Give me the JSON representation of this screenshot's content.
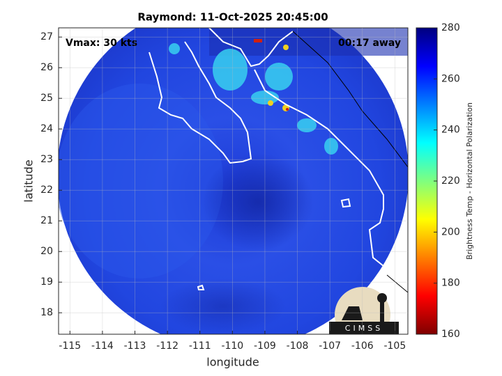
{
  "map": {
    "title": "Raymond: 11-Oct-2025 20:45:00",
    "annotations": {
      "left": "Vmax: 30 kts",
      "right": "00:17 away"
    },
    "xlabel": "longitude",
    "ylabel": "latitude",
    "xlim": [
      -115.35,
      -104.6
    ],
    "ylim": [
      17.3,
      27.3
    ],
    "xticks": [
      -115,
      -114,
      -113,
      -112,
      -111,
      -110,
      -109,
      -108,
      -107,
      -106,
      -105
    ],
    "yticks": [
      18,
      19,
      20,
      21,
      22,
      23,
      24,
      25,
      26,
      27
    ],
    "grid": true,
    "colorbar": {
      "label": "Brightness Temp - Horizontal Polarization",
      "clim": [
        160,
        280
      ],
      "ticks": [
        160,
        180,
        200,
        220,
        240,
        260,
        280
      ]
    },
    "logo": "CIMSS"
  }
}
